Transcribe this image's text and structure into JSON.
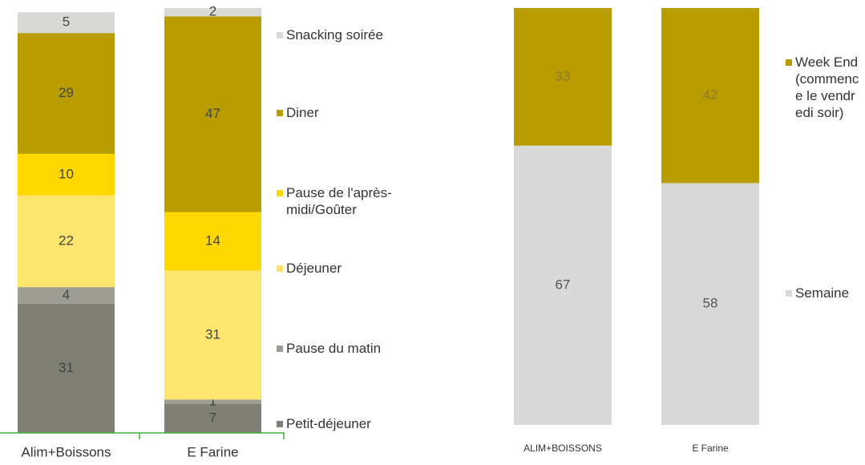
{
  "chart_data": [
    {
      "type": "stacked-bar",
      "categories": [
        "Alim+Boissons",
        "E Farine"
      ],
      "ylim": [
        0,
        102
      ],
      "series": [
        {
          "name": "Petit-déjeuner",
          "color": "#7f7f73",
          "values": [
            31,
            7
          ]
        },
        {
          "name": "Pause du matin",
          "color": "#9d9d94",
          "values": [
            4,
            1
          ]
        },
        {
          "name": "Déjeuner",
          "color": "#fde56e",
          "values": [
            22,
            31
          ]
        },
        {
          "name": "Pause de l'après-midi/Goûter",
          "color": "#fed800",
          "values": [
            10,
            14
          ]
        },
        {
          "name": "Diner",
          "color": "#b99d00",
          "values": [
            29,
            47
          ]
        },
        {
          "name": "Snacking soirée",
          "color": "#d9d9d6",
          "values": [
            5,
            2
          ]
        }
      ]
    },
    {
      "type": "stacked-bar",
      "categories": [
        "ALIM+BOISSONS",
        "E Farine"
      ],
      "ylim": [
        0,
        100
      ],
      "series": [
        {
          "name": "Semaine",
          "color": "#d9d9d9",
          "values": [
            67,
            58
          ]
        },
        {
          "name": "Week End (commence le vendredi soir)",
          "color": "#b99d00",
          "values": [
            33,
            42
          ]
        }
      ]
    }
  ]
}
